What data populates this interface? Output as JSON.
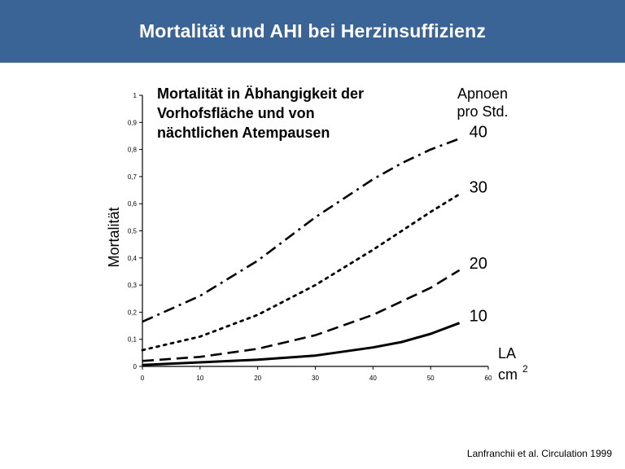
{
  "slide": {
    "title": "Mortalität und AHI bei Herzinsuffizienz",
    "citation": "Lanfranchii et al. Circulation 1999",
    "header_color": "#3a6496"
  },
  "chart_data": {
    "type": "line",
    "title_lines": [
      "Mortalität in Äbhangigkeit der",
      "Vorhofsfläche und von",
      "nächtlichen Atempausen"
    ],
    "ylabel": "Mortalität",
    "xlabel_lines": [
      "LA",
      "cm"
    ],
    "xlabel_superscript": "2",
    "legend_title_lines": [
      "Apnoen",
      "pro Std."
    ],
    "xlim": [
      0,
      60
    ],
    "ylim": [
      0,
      1
    ],
    "x_ticks": [
      "0",
      "10",
      "20",
      "30",
      "40",
      "50",
      "60"
    ],
    "y_ticks": [
      "0",
      "0,1",
      "0,2",
      "0,3",
      "0,4",
      "0,5",
      "0,6",
      "0,7",
      "0,8",
      "0,9",
      "1"
    ],
    "grid": false,
    "line_color": "#000000",
    "series": [
      {
        "name": "10",
        "style": "solid",
        "x": [
          0,
          10,
          20,
          30,
          40,
          45,
          50,
          55
        ],
        "y": [
          0.005,
          0.015,
          0.025,
          0.04,
          0.07,
          0.09,
          0.12,
          0.16
        ]
      },
      {
        "name": "20",
        "style": "dashed",
        "x": [
          0,
          10,
          20,
          30,
          40,
          45,
          50,
          55
        ],
        "y": [
          0.02,
          0.035,
          0.065,
          0.115,
          0.19,
          0.24,
          0.29,
          0.355
        ]
      },
      {
        "name": "30",
        "style": "dotted",
        "x": [
          0,
          10,
          20,
          30,
          40,
          45,
          50,
          55
        ],
        "y": [
          0.06,
          0.11,
          0.19,
          0.3,
          0.43,
          0.5,
          0.57,
          0.635
        ]
      },
      {
        "name": "40",
        "style": "dashdot",
        "x": [
          0,
          10,
          20,
          30,
          40,
          45,
          50,
          55
        ],
        "y": [
          0.165,
          0.26,
          0.39,
          0.55,
          0.69,
          0.75,
          0.8,
          0.84
        ]
      }
    ]
  }
}
